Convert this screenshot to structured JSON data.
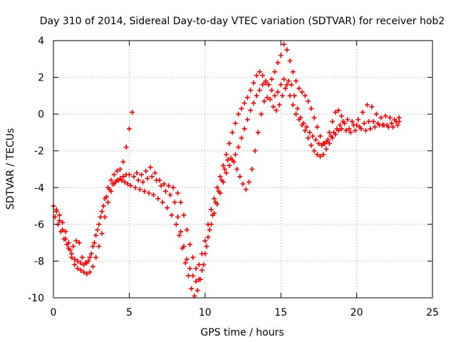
{
  "chart_data": {
    "type": "scatter",
    "title": "Day 310 of 2014, Sidereal Day-to-day VTEC variation (SDTVAR) for receiver hob2",
    "xlabel": "GPS time / hours",
    "ylabel": "SDTVAR / TECUs",
    "xlim": [
      0,
      25
    ],
    "ylim": [
      -10,
      4
    ],
    "xticks": [
      "0",
      "5",
      "10",
      "15",
      "20",
      "25"
    ],
    "yticks": [
      "-10",
      "-8",
      "-6",
      "-4",
      "-2",
      "0",
      "2",
      "4"
    ],
    "grid": true,
    "legend": "none",
    "marker": "plus",
    "color": "#ff0000",
    "series": [
      {
        "values_x": [
          0.0,
          0.2,
          0.4,
          0.6,
          0.8,
          1.0,
          1.2,
          1.4,
          1.6,
          1.8,
          2.0,
          2.2,
          2.4,
          2.6,
          2.8,
          3.0,
          3.2,
          3.4,
          3.6,
          3.8,
          4.0,
          4.2,
          4.4,
          4.6,
          4.8,
          5.0,
          5.3,
          5.6,
          5.9,
          6.2,
          6.5,
          6.8,
          7.1,
          7.4,
          7.7,
          8.0,
          8.2,
          8.4,
          8.6,
          8.8,
          9.0,
          9.2,
          9.4,
          9.6,
          9.8,
          10.0,
          10.2,
          10.4,
          10.6,
          10.8,
          11.0,
          11.2,
          11.4,
          11.6,
          11.8,
          12.0,
          12.2,
          12.4,
          12.6,
          12.8,
          13.0,
          13.2,
          13.4,
          13.6,
          13.8,
          14.0,
          14.2,
          14.4,
          14.6,
          14.8,
          15.0,
          15.2,
          15.4,
          15.6,
          15.8,
          16.0,
          16.2,
          16.4,
          16.6,
          16.8,
          17.0,
          17.2,
          17.4,
          17.6,
          17.8,
          18.0,
          18.2,
          18.4,
          18.6,
          18.8,
          19.0,
          19.3,
          19.6,
          19.9,
          20.2,
          20.5,
          20.8,
          21.1,
          21.4,
          21.7,
          22.0,
          22.3,
          22.6,
          22.8
        ],
        "values_y": [
          -5.0,
          -5.3,
          -5.8,
          -6.3,
          -6.8,
          -7.3,
          -7.8,
          -8.2,
          -8.4,
          -8.5,
          -8.6,
          -8.7,
          -8.6,
          -8.3,
          -7.8,
          -7.2,
          -6.5,
          -5.6,
          -4.8,
          -4.2,
          -3.8,
          -3.6,
          -3.5,
          -3.4,
          -3.3,
          -3.3,
          -3.4,
          -3.6,
          -3.7,
          -3.5,
          -3.4,
          -3.6,
          -3.9,
          -4.2,
          -4.4,
          -4.8,
          -5.6,
          -6.4,
          -7.2,
          -7.9,
          -8.4,
          -8.8,
          -9.1,
          -9.0,
          -8.5,
          -7.6,
          -6.7,
          -6.0,
          -5.4,
          -4.9,
          -4.3,
          -3.7,
          -3.2,
          -2.8,
          -2.5,
          -2.2,
          -1.8,
          -1.3,
          -0.8,
          -0.3,
          0.2,
          0.6,
          1.0,
          1.3,
          1.6,
          1.7,
          1.6,
          1.3,
          1.0,
          1.2,
          1.6,
          1.9,
          1.6,
          1.0,
          0.5,
          0.0,
          -0.3,
          -0.6,
          -0.9,
          -1.3,
          -1.7,
          -2.0,
          -2.2,
          -2.3,
          -2.2,
          -1.9,
          -1.6,
          -1.3,
          -1.1,
          -0.9,
          -0.8,
          -0.9,
          -1.0,
          -0.9,
          -0.7,
          -0.5,
          -0.4,
          -0.4,
          -0.5,
          -0.6,
          -0.6,
          -0.5,
          -0.4,
          -0.4
        ]
      },
      {
        "values_x": [
          0.1,
          0.3,
          0.5,
          0.7,
          0.9,
          1.1,
          1.3,
          1.5,
          1.7,
          1.9,
          2.1,
          2.3,
          2.5,
          2.7,
          2.9,
          3.1,
          3.3,
          3.5,
          3.7,
          3.9,
          4.1,
          4.3,
          4.5,
          4.7,
          4.9,
          5.1,
          5.4,
          5.7,
          6.0,
          6.3,
          6.6,
          6.9,
          7.2,
          7.5,
          7.8,
          8.1,
          8.3,
          8.5,
          8.7,
          8.9,
          9.1,
          9.3,
          9.5,
          9.7,
          9.9,
          10.1,
          10.3,
          10.5,
          10.7,
          10.9,
          11.1,
          11.3,
          11.5,
          11.7,
          11.9,
          12.1,
          12.3,
          12.5,
          12.7,
          12.9,
          13.1,
          13.3,
          13.5,
          13.7,
          13.9,
          14.1,
          14.3,
          14.5,
          14.7,
          14.9,
          15.1,
          15.3,
          15.5,
          15.7,
          15.9,
          16.1,
          16.3,
          16.5,
          16.7,
          16.9,
          17.1,
          17.3,
          17.5,
          17.7,
          17.9,
          18.1,
          18.3,
          18.5,
          18.7,
          18.9,
          19.1,
          19.4,
          19.7,
          20.0,
          20.3,
          20.6,
          20.9,
          21.2,
          21.5,
          21.8,
          22.1,
          22.4,
          22.7
        ],
        "values_y": [
          -5.6,
          -6.0,
          -6.4,
          -6.8,
          -7.1,
          -7.4,
          -7.2,
          -6.9,
          -7.0,
          -7.8,
          -8.1,
          -8.0,
          -7.6,
          -7.0,
          -6.3,
          -5.6,
          -5.0,
          -4.5,
          -4.1,
          -3.8,
          -3.7,
          -3.6,
          -3.6,
          -3.7,
          -3.8,
          -3.9,
          -4.0,
          -4.1,
          -4.2,
          -4.3,
          -4.4,
          -4.6,
          -4.8,
          -5.1,
          -5.5,
          -6.0,
          -6.6,
          -7.3,
          -8.1,
          -8.8,
          -9.5,
          -9.9,
          -9.6,
          -9.0,
          -8.2,
          -7.2,
          -6.3,
          -5.5,
          -4.8,
          -4.2,
          -3.6,
          -3.0,
          -2.5,
          -2.4,
          -2.6,
          -3.0,
          -3.4,
          -3.8,
          -4.1,
          -3.7,
          -3.0,
          -2.0,
          -1.0,
          0.0,
          0.7,
          0.9,
          0.8,
          0.4,
          0.2,
          0.5,
          1.0,
          1.4,
          1.8,
          1.6,
          1.0,
          0.3,
          -0.2,
          -0.5,
          -0.7,
          -1.0,
          -1.2,
          -1.4,
          -1.6,
          -1.7,
          -1.6,
          -1.4,
          -1.2,
          -1.0,
          -0.8,
          -0.6,
          -0.4,
          -0.3,
          -0.4,
          -0.6,
          -0.8,
          -0.9,
          -0.8,
          -0.7,
          -0.6,
          -0.6,
          -0.7,
          -0.7,
          -0.6
        ]
      },
      {
        "values_x": [
          0.2,
          0.4,
          0.6,
          0.8,
          1.0,
          1.2,
          1.4,
          1.6,
          1.8,
          2.0,
          2.2,
          2.4,
          2.6,
          2.8,
          3.0,
          3.2,
          3.4,
          3.6,
          3.8,
          4.0,
          4.2,
          4.4,
          4.6,
          4.8,
          5.0,
          5.2,
          5.5,
          5.8,
          6.1,
          6.4,
          6.7,
          7.0,
          7.3,
          7.6,
          7.9,
          8.2,
          8.4,
          8.6,
          8.8,
          9.0,
          9.2,
          9.4,
          9.6,
          9.8,
          10.0,
          10.2,
          10.4,
          10.6,
          10.8,
          11.0,
          11.2,
          11.4,
          11.6,
          11.8,
          12.0,
          12.2,
          12.4,
          12.6,
          12.8,
          13.0,
          13.2,
          13.4,
          13.6,
          13.8,
          14.0,
          14.2,
          14.4,
          14.6,
          14.8,
          15.0,
          15.2,
          15.4,
          15.6,
          15.8,
          16.0,
          16.2,
          16.4,
          16.6,
          16.8,
          17.0,
          17.2,
          17.4,
          17.6,
          17.8,
          18.0,
          18.2,
          18.4,
          18.6,
          18.8,
          19.0,
          19.2,
          19.5,
          19.8,
          20.1,
          20.4,
          20.7,
          21.0,
          21.3,
          21.6,
          21.9,
          22.2,
          22.5,
          22.8
        ],
        "values_y": [
          -5.2,
          -5.5,
          -5.9,
          -6.4,
          -7.0,
          -7.6,
          -7.9,
          -8.0,
          -8.1,
          -8.2,
          -8.1,
          -7.8,
          -7.2,
          -6.6,
          -6.0,
          -5.3,
          -4.6,
          -4.0,
          -3.6,
          -3.3,
          -3.1,
          -3.0,
          -2.6,
          -1.8,
          -0.8,
          0.1,
          -3.2,
          -3.3,
          -3.1,
          -2.9,
          -3.2,
          -3.6,
          -3.8,
          -3.9,
          -4.0,
          -4.3,
          -4.8,
          -5.5,
          -6.3,
          -7.1,
          -7.8,
          -8.4,
          -8.2,
          -7.6,
          -6.9,
          -6.0,
          -5.2,
          -4.6,
          -4.0,
          -3.4,
          -2.8,
          -2.2,
          -1.6,
          -1.0,
          -0.5,
          0.0,
          0.3,
          0.6,
          0.9,
          1.3,
          1.7,
          2.1,
          2.3,
          2.1,
          1.8,
          1.6,
          1.9,
          2.3,
          2.8,
          3.2,
          3.8,
          3.5,
          2.9,
          2.3,
          1.8,
          1.4,
          1.2,
          1.0,
          0.7,
          0.3,
          -0.2,
          -0.7,
          -1.2,
          -1.6,
          -1.5,
          -1.0,
          -0.4,
          0.1,
          0.2,
          -0.1,
          -0.5,
          -0.8,
          -0.6,
          -0.3,
          0.1,
          0.5,
          0.4,
          0.0,
          -0.2,
          -0.1,
          -0.2,
          -0.3,
          -0.2
        ]
      }
    ]
  }
}
